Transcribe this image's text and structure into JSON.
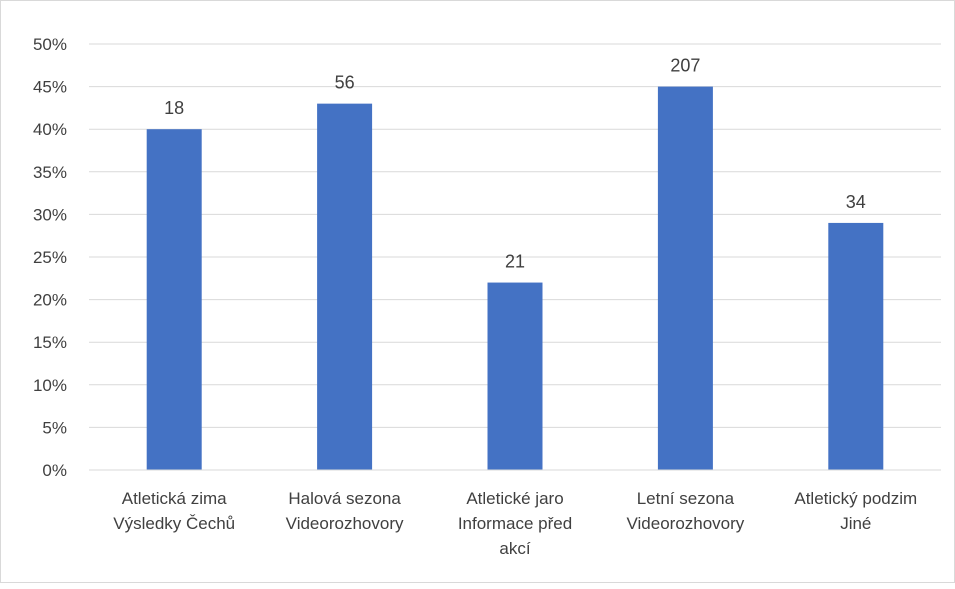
{
  "chart_data": {
    "type": "bar",
    "categories": [
      [
        "Atletická zima",
        "Výsledky Čechů"
      ],
      [
        "Halová sezona",
        "Videorozhovory"
      ],
      [
        "Atletické jaro",
        "Informace před",
        "akcí"
      ],
      [
        "Letní sezona",
        "Videorozhovory"
      ],
      [
        "Atletický podzim",
        "Jiné"
      ]
    ],
    "values": [
      40,
      43,
      22,
      45,
      29
    ],
    "data_labels": [
      "18",
      "56",
      "21",
      "207",
      "34"
    ],
    "y_ticks": [
      "0%",
      "5%",
      "10%",
      "15%",
      "20%",
      "25%",
      "30%",
      "35%",
      "40%",
      "45%",
      "50%"
    ],
    "ylim": [
      0,
      50
    ],
    "y_step": 5,
    "grid": true,
    "legend": "none",
    "bar_color": "#4472c4",
    "grid_color": "#d9d9d9",
    "text_color": "#404040"
  }
}
